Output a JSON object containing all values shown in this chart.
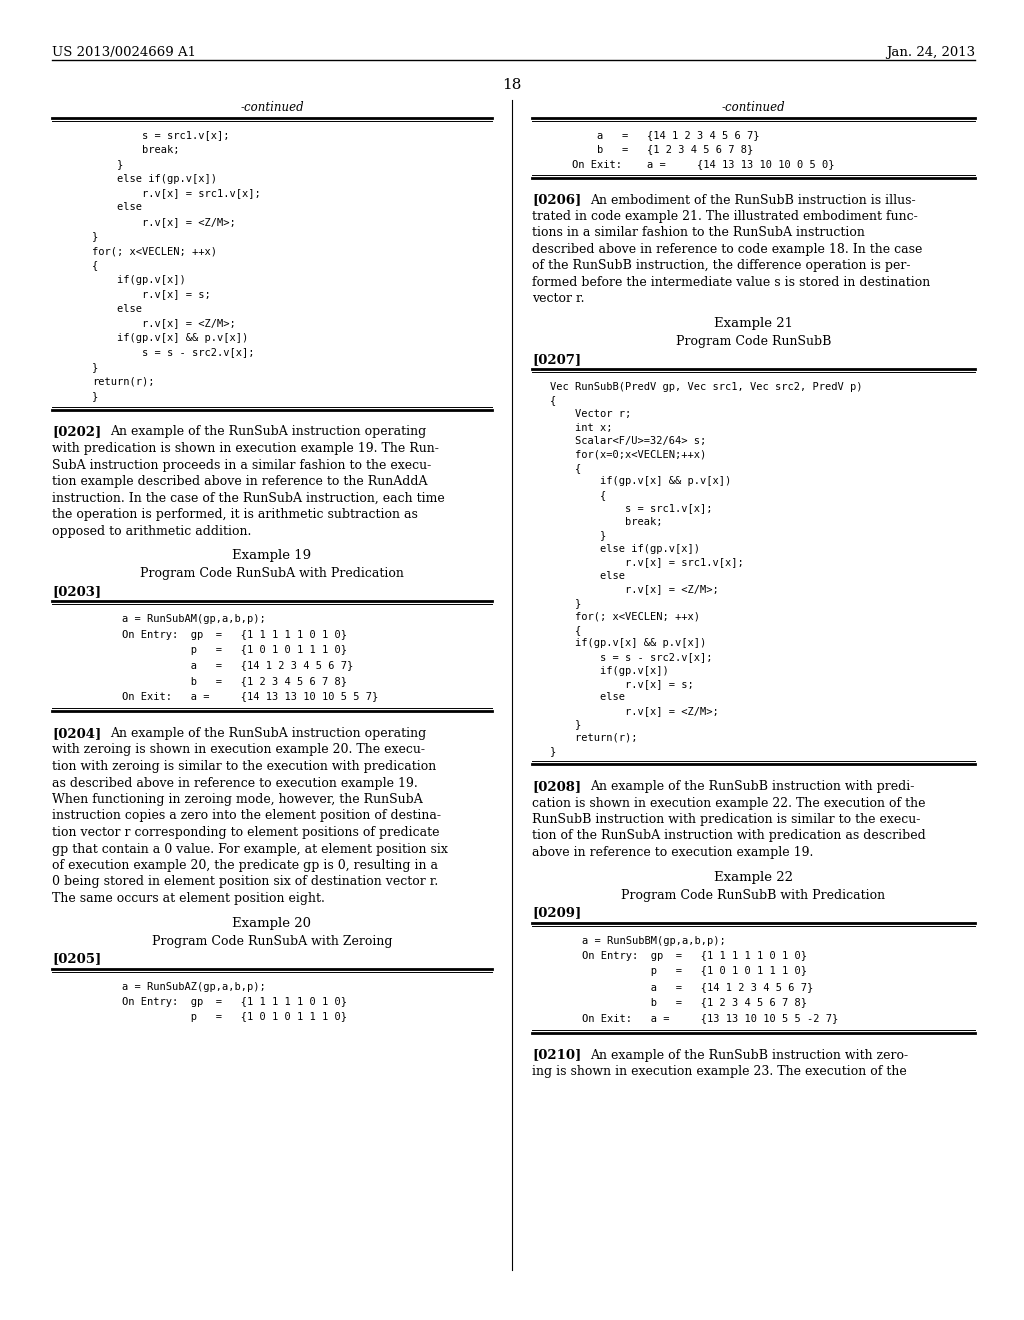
{
  "bg_color": "#ffffff",
  "header_left": "US 2013/0024669 A1",
  "header_right": "Jan. 24, 2013",
  "page_number": "18",
  "left_continued_lines": [
    "        s = src1.v[x];",
    "        break;",
    "    }",
    "    else if(gp.v[x])",
    "        r.v[x] = src1.v[x];",
    "    else",
    "        r.v[x] = <Z/M>;",
    "}",
    "for(; x<VECLEN; ++x)",
    "{",
    "    if(gp.v[x])",
    "        r.v[x] = s;",
    "    else",
    "        r.v[x] = <Z/M>;",
    "    if(gp.v[x] && p.v[x])",
    "        s = s - src2.v[x];",
    "}",
    "return(r);",
    "}"
  ],
  "right_continued_lines": [
    "    a   =   {14 1 2 3 4 5 6 7}",
    "    b   =   {1 2 3 4 5 6 7 8}",
    "On Exit:    a =     {14 13 13 10 10 0 5 0}"
  ],
  "para0202_lines": [
    "An example of the RunSubA instruction operating",
    "with predication is shown in execution example 19. The Run-",
    "SubA instruction proceeds in a similar fashion to the execu-",
    "tion example described above in reference to the RunAddA",
    "instruction. In the case of the RunSubA instruction, each time",
    "the operation is performed, it is arithmetic subtraction as",
    "opposed to arithmetic addition."
  ],
  "para0204_lines": [
    "An example of the RunSubA instruction operating",
    "with zeroing is shown in execution example 20. The execu-",
    "tion with zeroing is similar to the execution with predication",
    "as described above in reference to execution example 19.",
    "When functioning in zeroing mode, however, the RunSubA",
    "instruction copies a zero into the element position of destina-",
    "tion vector r corresponding to element positions of predicate",
    "gp that contain a 0 value. For example, at element position six",
    "of execution example 20, the predicate gp is 0, resulting in a",
    "0 being stored in element position six of destination vector r.",
    "The same occurs at element position eight."
  ],
  "para0206_lines": [
    "An embodiment of the RunSubB instruction is illus-",
    "trated in code example 21. The illustrated embodiment func-",
    "tions in a similar fashion to the RunSubA instruction",
    "described above in reference to code example 18. In the case",
    "of the RunSubB instruction, the difference operation is per-",
    "formed before the intermediate value s is stored in destination",
    "vector r."
  ],
  "runsub_code_lines": [
    "Vec RunSubB(PredV gp, Vec src1, Vec src2, PredV p)",
    "{",
    "    Vector r;",
    "    int x;",
    "    Scalar<F/U>=32/64> s;",
    "    for(x=0;x<VECLEN;++x)",
    "    {",
    "        if(gp.v[x] && p.v[x])",
    "        {",
    "            s = src1.v[x];",
    "            break;",
    "        }",
    "        else if(gp.v[x])",
    "            r.v[x] = src1.v[x];",
    "        else",
    "            r.v[x] = <Z/M>;",
    "    }",
    "    for(; x<VECLEN; ++x)",
    "    {",
    "    if(gp.v[x] && p.v[x])",
    "        s = s - src2.v[x];",
    "        if(gp.v[x])",
    "            r.v[x] = s;",
    "        else",
    "            r.v[x] = <Z/M>;",
    "    }",
    "    return(r);",
    "}"
  ],
  "para0208_lines": [
    "An example of the RunSubB instruction with predi-",
    "cation is shown in execution example 22. The execution of the",
    "RunSubB instruction with predication is similar to the execu-",
    "tion of the RunSubA instruction with predication as described",
    "above in reference to execution example 19."
  ],
  "data_box_19": [
    "a = RunSubAM(gp,a,b,p);",
    "On Entry:  gp  =   {1 1 1 1 1 0 1 0}",
    "           p   =   {1 0 1 0 1 1 1 0}",
    "           a   =   {14 1 2 3 4 5 6 7}",
    "           b   =   {1 2 3 4 5 6 7 8}",
    "On Exit:   a =     {14 13 13 10 10 5 5 7}"
  ],
  "data_box_22": [
    "a = RunSubBM(gp,a,b,p);",
    "On Entry:  gp  =   {1 1 1 1 1 0 1 0}",
    "           p   =   {1 0 1 0 1 1 1 0}",
    "           a   =   {14 1 2 3 4 5 6 7}",
    "           b   =   {1 2 3 4 5 6 7 8}",
    "On Exit:   a =     {13 13 10 10 5 5 -2 7}"
  ],
  "partial_left_lines": [
    "a = RunSubAZ(gp,a,b,p);",
    "On Entry:  gp  =   {1 1 1 1 1 0 1 0}",
    "           p   =   {1 0 1 0 1 1 1 0}"
  ],
  "para0210_line1": "An example of the RunSubB instruction with zero-",
  "para0210_line2": "ing is shown in execution example 23. The execution of the"
}
